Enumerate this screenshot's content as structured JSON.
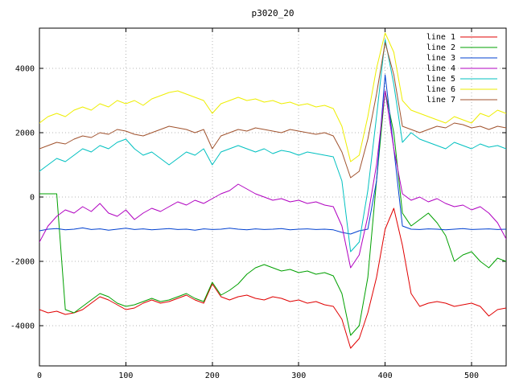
{
  "chart_data": {
    "type": "line",
    "title": "p3020_20",
    "xlabel": "",
    "ylabel": "",
    "xlim": [
      0,
      540
    ],
    "ylim": [
      -5250,
      5250
    ],
    "xticks": [
      0,
      100,
      200,
      300,
      400,
      500
    ],
    "yticks": [
      -4000,
      -2000,
      0,
      2000,
      4000
    ],
    "grid": true,
    "legend_position": "top-right",
    "background_color": "#ffffff",
    "x_start": 0,
    "x_step": 10,
    "series": [
      {
        "name": "line 1",
        "color": "#e00000",
        "values": [
          -3500,
          -3600,
          -3550,
          -3650,
          -3600,
          -3500,
          -3300,
          -3100,
          -3200,
          -3350,
          -3500,
          -3450,
          -3300,
          -3200,
          -3300,
          -3250,
          -3150,
          -3050,
          -3200,
          -3300,
          -2700,
          -3100,
          -3200,
          -3100,
          -3050,
          -3150,
          -3200,
          -3100,
          -3150,
          -3250,
          -3200,
          -3300,
          -3250,
          -3350,
          -3400,
          -3800,
          -4700,
          -4400,
          -3600,
          -2500,
          -1000,
          -350,
          -1500,
          -3000,
          -3400,
          -3300,
          -3250,
          -3300,
          -3400,
          -3350,
          -3300,
          -3400,
          -3700,
          -3500,
          -3450
        ]
      },
      {
        "name": "line 2",
        "color": "#00a000",
        "values": [
          100,
          100,
          100,
          -3500,
          -3600,
          -3400,
          -3200,
          -3000,
          -3100,
          -3300,
          -3400,
          -3350,
          -3250,
          -3150,
          -3250,
          -3200,
          -3100,
          -3000,
          -3150,
          -3250,
          -2650,
          -3050,
          -2900,
          -2700,
          -2400,
          -2200,
          -2100,
          -2200,
          -2300,
          -2250,
          -2350,
          -2300,
          -2400,
          -2350,
          -2450,
          -3000,
          -4300,
          -4000,
          -2500,
          500,
          3300,
          2000,
          -500,
          -900,
          -700,
          -500,
          -800,
          -1200,
          -2000,
          -1800,
          -1700,
          -2000,
          -2200,
          -1900,
          -2000
        ]
      },
      {
        "name": "line 3",
        "color": "#0040d0",
        "values": [
          -1050,
          -1000,
          -980,
          -1020,
          -1000,
          -960,
          -1010,
          -990,
          -1030,
          -1000,
          -970,
          -1010,
          -990,
          -1020,
          -1000,
          -980,
          -1010,
          -1000,
          -1030,
          -990,
          -1010,
          -1000,
          -970,
          -1000,
          -1020,
          -990,
          -1010,
          -1000,
          -980,
          -1020,
          -1000,
          -990,
          -1010,
          -1000,
          -1020,
          -1100,
          -1150,
          -1050,
          -1000,
          500,
          3800,
          1500,
          -900,
          -1000,
          -1010,
          -990,
          -1000,
          -1020,
          -1000,
          -980,
          -1010,
          -1000,
          -990,
          -1010,
          -1000
        ]
      },
      {
        "name": "line 4",
        "color": "#b000c0",
        "values": [
          -1400,
          -900,
          -600,
          -400,
          -500,
          -300,
          -450,
          -200,
          -500,
          -600,
          -400,
          -700,
          -500,
          -350,
          -450,
          -300,
          -150,
          -250,
          -100,
          -200,
          -50,
          100,
          200,
          400,
          250,
          100,
          0,
          -100,
          -50,
          -150,
          -100,
          -200,
          -150,
          -250,
          -300,
          -900,
          -2200,
          -1800,
          -600,
          1000,
          3300,
          1500,
          100,
          -100,
          0,
          -150,
          -50,
          -200,
          -300,
          -250,
          -400,
          -300,
          -500,
          -800,
          -1300
        ]
      },
      {
        "name": "line 5",
        "color": "#00c0c0",
        "values": [
          800,
          1000,
          1200,
          1100,
          1300,
          1500,
          1400,
          1600,
          1500,
          1700,
          1800,
          1500,
          1300,
          1400,
          1200,
          1000,
          1200,
          1400,
          1300,
          1500,
          1000,
          1400,
          1500,
          1600,
          1500,
          1400,
          1500,
          1350,
          1450,
          1400,
          1300,
          1400,
          1350,
          1300,
          1250,
          500,
          -1700,
          -1400,
          200,
          2500,
          4900,
          3500,
          1700,
          2000,
          1800,
          1700,
          1600,
          1500,
          1700,
          1600,
          1500,
          1650,
          1550,
          1600,
          1500
        ]
      },
      {
        "name": "line 6",
        "color": "#eeee00",
        "values": [
          2300,
          2500,
          2600,
          2500,
          2700,
          2800,
          2700,
          2900,
          2800,
          3000,
          2900,
          3000,
          2850,
          3050,
          3150,
          3250,
          3300,
          3200,
          3100,
          3000,
          2600,
          2900,
          3000,
          3100,
          3000,
          3050,
          2950,
          3000,
          2900,
          2950,
          2850,
          2900,
          2800,
          2850,
          2750,
          2200,
          1100,
          1300,
          2500,
          4000,
          5100,
          4500,
          3000,
          2700,
          2600,
          2500,
          2400,
          2300,
          2500,
          2400,
          2300,
          2600,
          2500,
          2700,
          2600
        ]
      },
      {
        "name": "line 7",
        "color": "#a0522d",
        "values": [
          1500,
          1600,
          1700,
          1650,
          1800,
          1900,
          1850,
          2000,
          1950,
          2100,
          2050,
          1950,
          1900,
          2000,
          2100,
          2200,
          2150,
          2100,
          2000,
          2100,
          1500,
          1900,
          2000,
          2100,
          2050,
          2150,
          2100,
          2050,
          2000,
          2100,
          2050,
          2000,
          1950,
          2000,
          1900,
          1400,
          600,
          800,
          1800,
          3200,
          4800,
          3800,
          2200,
          2100,
          2000,
          2100,
          2200,
          2150,
          2300,
          2250,
          2150,
          2200,
          2100,
          2200,
          2150
        ]
      }
    ]
  }
}
